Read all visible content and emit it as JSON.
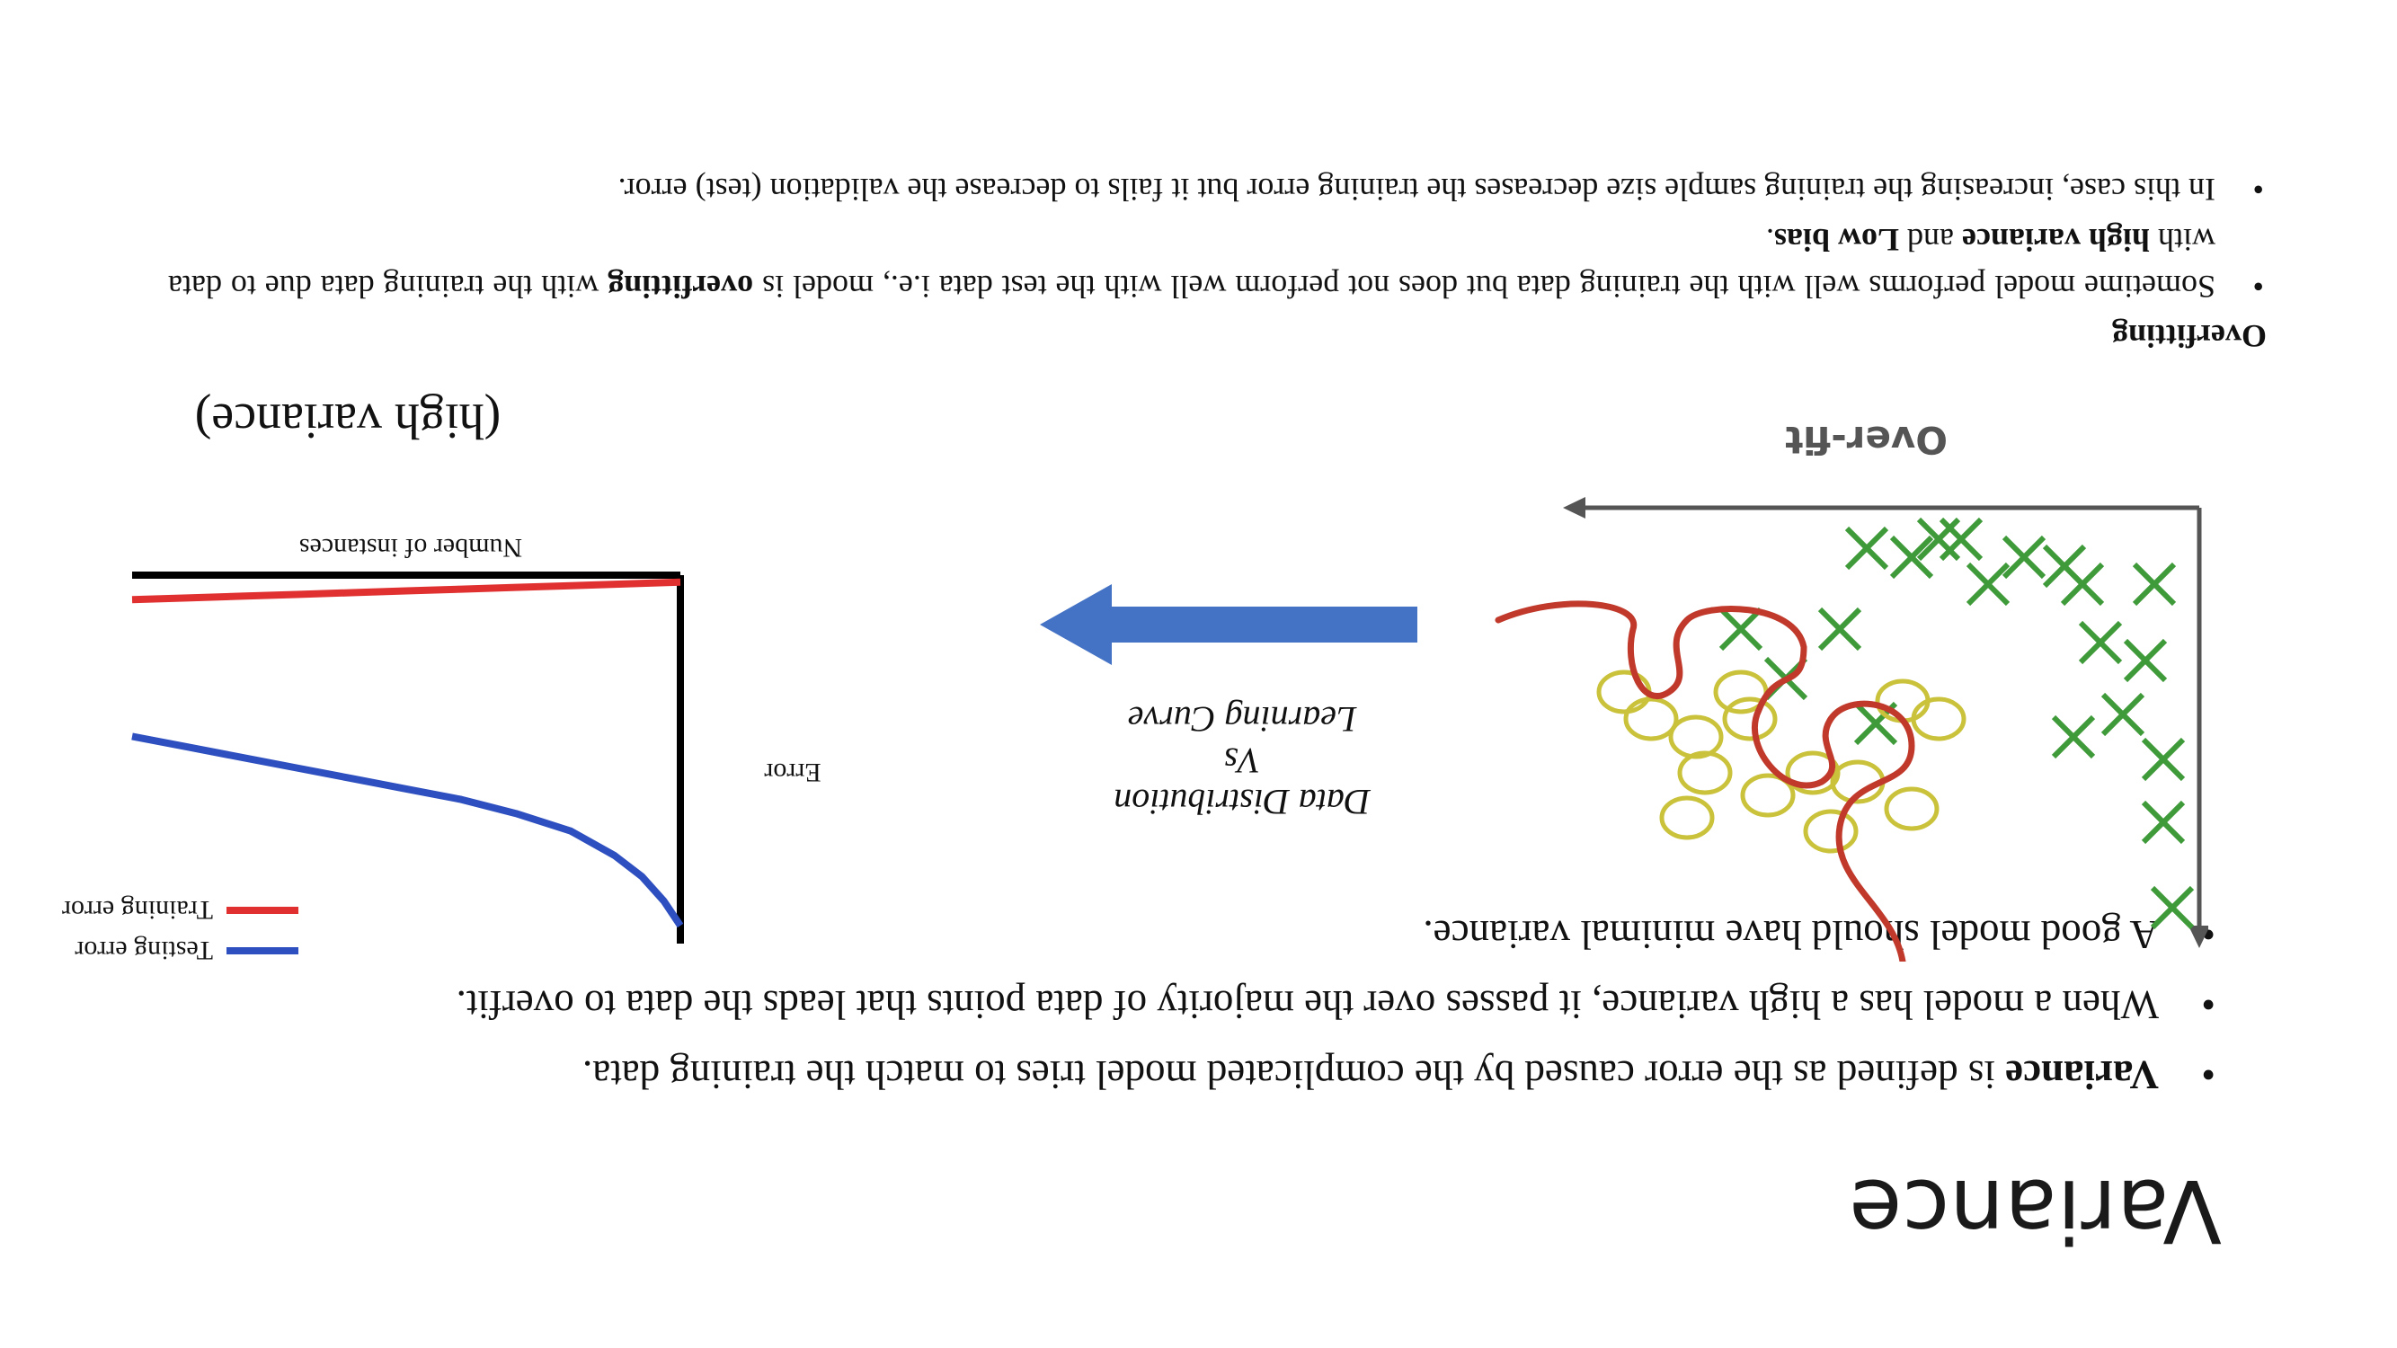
{
  "slide": {
    "title": "Variance",
    "bullets": [
      {
        "bold": "Variance",
        "rest": " is defined as the error caused by the complicated model tries to match the training data."
      },
      {
        "bold": "",
        "rest": "When a model has a high variance, it passes over the majority of data points that leads the data to overfit."
      },
      {
        "bold": "",
        "rest": "A good model should have minimal variance."
      }
    ]
  },
  "diagram": {
    "label": "Over-fit",
    "colors": {
      "cross": "#3f9a3a",
      "circle": "#c9c23a",
      "boundary": "#c0392b",
      "axis": "#555555"
    }
  },
  "arrow_caption": {
    "line1": "Data Distribution",
    "line2": "Vs",
    "line3": "Learning Curve",
    "arrow_color": "#4472c4"
  },
  "chart": {
    "title": "(high variance)",
    "chart_data": {
      "type": "line",
      "xlabel": "Number of instances",
      "ylabel": "Error",
      "title": "(high variance)",
      "series": [
        {
          "name": "Training error",
          "color": "#e03030",
          "x": [
            0,
            1,
            2,
            3,
            4,
            5,
            6,
            7,
            8,
            9,
            10
          ],
          "y": [
            0.02,
            0.025,
            0.03,
            0.035,
            0.04,
            0.045,
            0.05,
            0.055,
            0.06,
            0.065,
            0.07
          ]
        },
        {
          "name": "Testing error",
          "color": "#2e4fbf",
          "x": [
            0,
            0.3,
            0.7,
            1.2,
            2,
            3,
            4,
            5,
            6,
            7,
            8,
            9,
            10
          ],
          "y": [
            1.0,
            0.93,
            0.86,
            0.8,
            0.73,
            0.68,
            0.64,
            0.61,
            0.58,
            0.55,
            0.52,
            0.49,
            0.46
          ]
        }
      ],
      "xlim": [
        0,
        10
      ],
      "ylim": [
        0,
        1
      ],
      "grid": false,
      "legend": "bottom-right"
    }
  },
  "overfitting": {
    "heading": "Overfitting",
    "bullet1": {
      "part1": "Sometime model performs well with the training data but does not perform well with the test data i.e., model is ",
      "bold1": "overfitting",
      "part2": " with the training data due to data with ",
      "bold2": "high variance",
      "part3": " and ",
      "bold3": "Low bias",
      "part4": "."
    },
    "bullet2": "In this case, increasing the training sample size decreases the training error but it fails to decrease the validation (test) error."
  }
}
